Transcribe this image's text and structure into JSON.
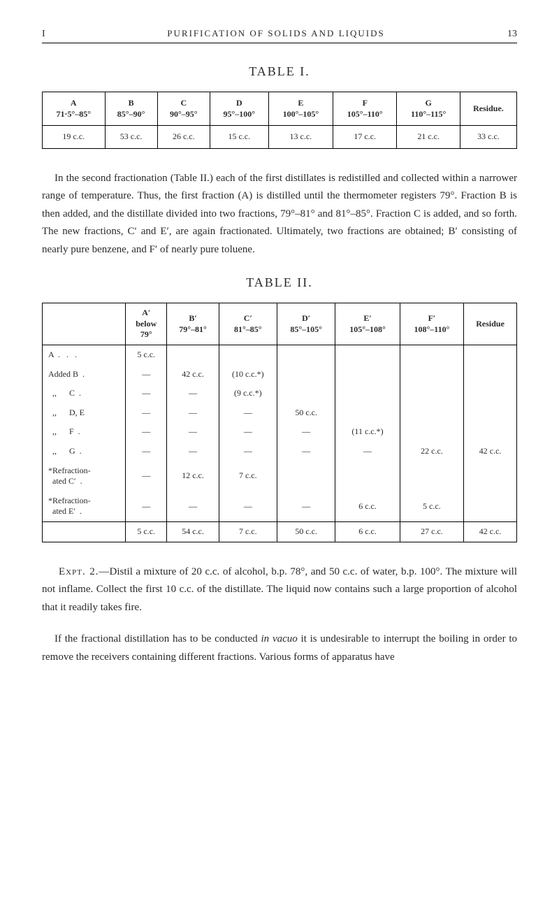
{
  "header": {
    "chapter": "I",
    "title": "PURIFICATION OF SOLIDS AND LIQUIDS",
    "page": "13"
  },
  "table1": {
    "title": "TABLE I.",
    "headers": [
      {
        "label": "A",
        "range": "71·5°–85°"
      },
      {
        "label": "B",
        "range": "85°–90°"
      },
      {
        "label": "C",
        "range": "90°–95°"
      },
      {
        "label": "D",
        "range": "95°–100°"
      },
      {
        "label": "E",
        "range": "100°–105°"
      },
      {
        "label": "F",
        "range": "105°–110°"
      },
      {
        "label": "G",
        "range": "110°–115°"
      },
      {
        "label": "Residue.",
        "range": ""
      }
    ],
    "row": [
      "19 c.c.",
      "53 c.c.",
      "26 c.c.",
      "15 c.c.",
      "13 c.c.",
      "17 c.c.",
      "21 c.c.",
      "33 c.c."
    ]
  },
  "para1": "In the second fractionation (Table II.) each of the first distillates is redistilled and collected within a narrower range of temperature. Thus, the first fraction (A) is distilled until the thermometer registers 79°. Fraction B is then added, and the distillate divided into two fractions, 79°–81° and 81°–85°. Fraction C is added, and so forth. The new fractions, C′ and E′, are again fractionated. Ultimately, two fractions are obtained; B′ consisting of nearly pure benzene, and F′ of nearly pure toluene.",
  "table2": {
    "title": "TABLE II.",
    "headers": [
      "",
      "A′\nbelow\n79°",
      "B′\n79°–81°",
      "C′\n81°–85°",
      "D′\n85°–105°",
      "E′\n105°–108°",
      "F′\n108°–110°",
      "Residue"
    ],
    "rows": [
      {
        "label": "A  .   .   .",
        "cells": [
          "5 c.c.",
          "",
          "",
          "",
          "",
          "",
          ""
        ]
      },
      {
        "label": "Added B  .",
        "cells": [
          "—",
          "42 c.c.",
          "(10 c.c.*)",
          "",
          "",
          "",
          ""
        ]
      },
      {
        "label": "  ,,      C  .",
        "cells": [
          "—",
          "—",
          "(9 c.c.*)",
          "",
          "",
          "",
          ""
        ]
      },
      {
        "label": "  ,,      D, E",
        "cells": [
          "—",
          "—",
          "—",
          "50 c.c.",
          "",
          "",
          ""
        ]
      },
      {
        "label": "  ,,      F  .",
        "cells": [
          "—",
          "—",
          "—",
          "—",
          "(11 c.c.*)",
          "",
          ""
        ]
      },
      {
        "label": "  ,,      G  .",
        "cells": [
          "—",
          "—",
          "—",
          "—",
          "—",
          "22 c.c.",
          "42 c.c."
        ]
      },
      {
        "label": "*Refraction-\n  ated C′  .",
        "cells": [
          "—",
          "12 c.c.",
          "7 c.c.",
          "",
          "",
          "",
          ""
        ]
      },
      {
        "label": "*Refraction-\n  ated E′  .",
        "cells": [
          "—",
          "—",
          "—",
          "—",
          "6 c.c.",
          "5 c.c.",
          ""
        ]
      }
    ],
    "footer": [
      "",
      "5 c.c.",
      "54 c.c.",
      "7 c.c.",
      "50 c.c.",
      "6 c.c.",
      "27 c.c.",
      "42 c.c."
    ]
  },
  "expt": {
    "lead": "Expt. 2.",
    "body": "—Distil a mixture of 20 c.c. of alcohol, b.p. 78°, and 50 c.c. of water, b.p. 100°. The mixture will not inflame. Collect the first 10 c.c. of the distillate. The liquid now contains such a large proportion of alcohol that it readily takes fire."
  },
  "para2_pre": "If the fractional distillation has to be conducted ",
  "para2_it": "in vacuo",
  "para2_post": " it is undesirable to interrupt the boiling in order to remove the receivers containing different fractions. Various forms of apparatus have"
}
